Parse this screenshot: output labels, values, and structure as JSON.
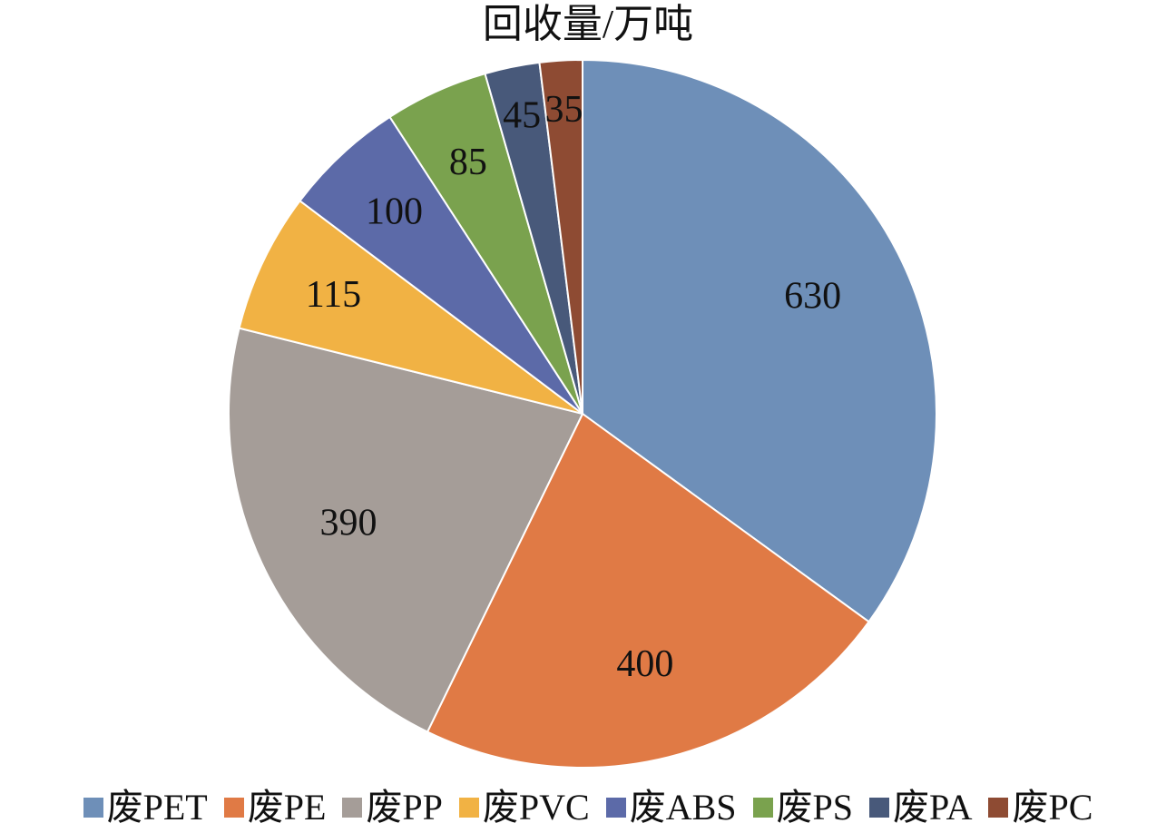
{
  "chart_data": {
    "type": "pie",
    "title": "回收量/万吨",
    "categories": [
      "废PET",
      "废PE",
      "废PP",
      "废PVC",
      "废ABS",
      "废PS",
      "废PA",
      "废PC"
    ],
    "values": [
      630,
      400,
      390,
      115,
      100,
      85,
      45,
      35
    ],
    "colors": [
      "#6E8FB8",
      "#E07A45",
      "#A59D98",
      "#F1B244",
      "#5C6AA8",
      "#7AA24E",
      "#48597A",
      "#8E4B33"
    ],
    "legend_position": "bottom",
    "data_labels": true
  }
}
